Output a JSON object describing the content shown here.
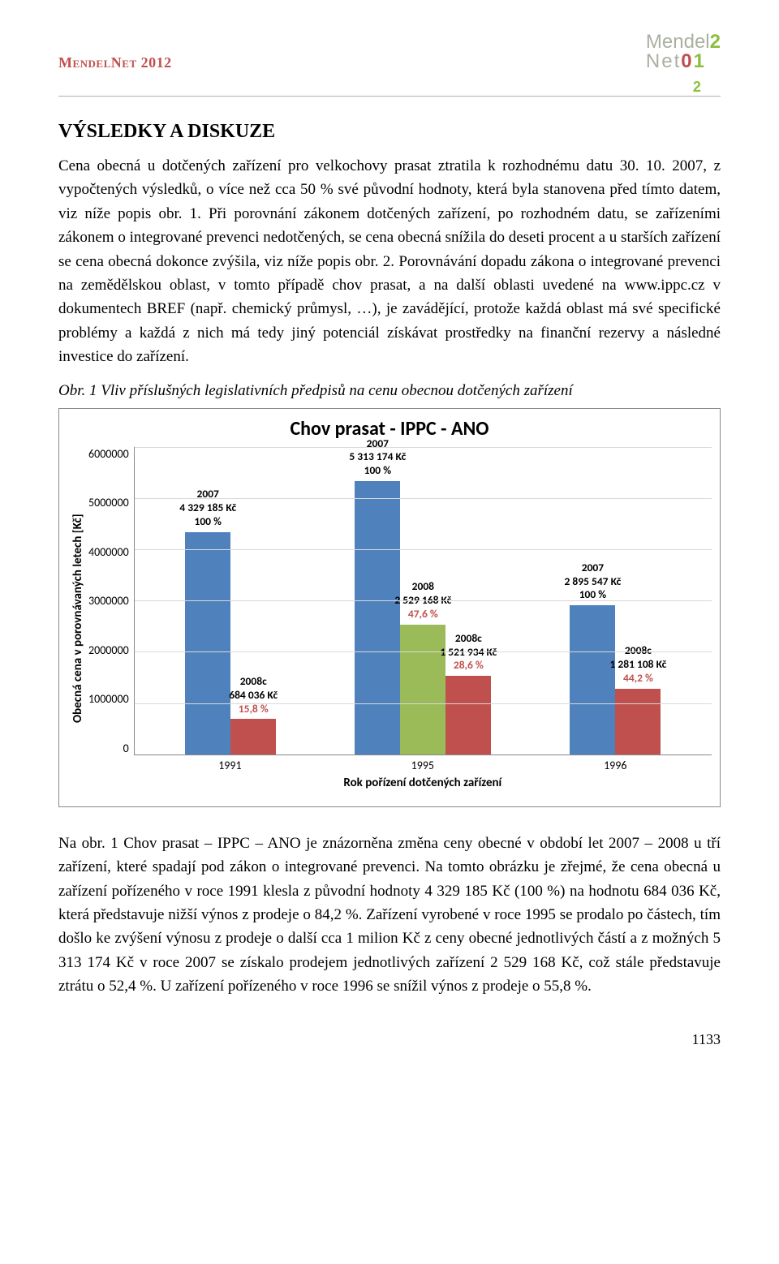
{
  "header": {
    "left": "MendelNet 2012",
    "logo_line1a": "Mendel",
    "logo_line1b": "2",
    "logo_line2a": "Net",
    "logo_line2b": "0",
    "logo_line2c": "1",
    "logo_line2d": "2"
  },
  "section_title": "VÝSLEDKY A DISKUZE",
  "para1": "Cena obecná u dotčených zařízení pro velkochovy prasat ztratila k rozhodnému datu 30. 10. 2007, z vypočtených výsledků, o více než cca 50 % své původní hodnoty, která byla stanovena před tímto datem, viz níže popis obr. 1. Při porovnání zákonem dotčených zařízení, po rozhodném datu, se zařízeními zákonem o integrované prevenci nedotčených, se cena obecná snížila do deseti procent a u starších zařízení se cena obecná dokonce zvýšila, viz níže popis obr. 2. Porovnávání dopadu zákona o integrované prevenci na zemědělskou oblast, v tomto případě chov prasat, a na další oblasti uvedené na www.ippc.cz v dokumentech BREF (např. chemický průmysl, …), je zavádějící, protože každá oblast má své specifické problémy a každá z nich má tedy jiný potenciál získávat prostředky na finanční rezervy a následné investice do zařízení.",
  "caption": "Obr. 1 Vliv příslušných legislativních předpisů na cenu obecnou dotčených zařízení",
  "chart": {
    "title": "Chov prasat - IPPC - ANO",
    "y_title": "Obecná cena v porovnávaných letech [Kč]",
    "x_title": "Rok pořízení dotčených zařízení",
    "ymax": 6000000,
    "yticks": [
      "6000000",
      "5000000",
      "4000000",
      "3000000",
      "2000000",
      "1000000",
      "0"
    ],
    "gridline_color": "#d9d9d9",
    "colors": {
      "blue": "#4f81bd",
      "red": "#c0504d",
      "green": "#9bbb59"
    },
    "groups": [
      {
        "x": "1991",
        "bars": [
          {
            "value": 4329185,
            "color": "blue",
            "lines": [
              "2007",
              "4 329 185 Kč",
              "100 %"
            ],
            "red_lines": []
          },
          {
            "value": 684036,
            "color": "red",
            "lines": [
              "2008c",
              "684 036 Kč"
            ],
            "red_lines": [
              "15,8 %"
            ]
          }
        ]
      },
      {
        "x": "1995",
        "bars": [
          {
            "value": 5313174,
            "color": "blue",
            "lines": [
              "2007",
              "5 313 174 Kč",
              "100 %"
            ],
            "red_lines": []
          },
          {
            "value": 2529168,
            "color": "green",
            "lines": [
              "2008",
              "2 529 168 Kč"
            ],
            "red_lines": [
              "47,6 %"
            ]
          },
          {
            "value": 1521934,
            "color": "red",
            "lines": [
              "2008c",
              "1 521 934 Kč"
            ],
            "red_lines": [
              "28,6 %"
            ]
          }
        ]
      },
      {
        "x": "1996",
        "bars": [
          {
            "value": 2895547,
            "color": "blue",
            "lines": [
              "2007",
              "2 895 547 Kč",
              "100 %"
            ],
            "red_lines": []
          },
          {
            "value": 1281108,
            "color": "red",
            "lines": [
              "2008c",
              "1 281 108 Kč"
            ],
            "red_lines": [
              "44,2 %"
            ]
          }
        ]
      }
    ]
  },
  "para2": "Na obr. 1 Chov prasat – IPPC – ANO je znázorněna změna ceny obecné v období let 2007 – 2008 u tří zařízení, které spadají pod zákon o integrované prevenci. Na tomto obrázku je zřejmé, že cena obecná u zařízení pořízeného v roce 1991 klesla z původní hodnoty 4 329 185 Kč (100 %) na hodnotu 684 036 Kč, která představuje nižší výnos z prodeje o 84,2 %. Zařízení vyrobené v roce 1995 se prodalo po částech, tím došlo ke zvýšení výnosu z prodeje o další cca 1 milion Kč z ceny obecné jednotlivých částí a z možných 5 313 174 Kč v roce 2007 se získalo prodejem jednotlivých zařízení 2 529 168 Kč, což stále představuje ztrátu o 52,4 %. U zařízení pořízeného v roce 1996 se snížil výnos z prodeje o 55,8 %.",
  "page_number": "1133"
}
